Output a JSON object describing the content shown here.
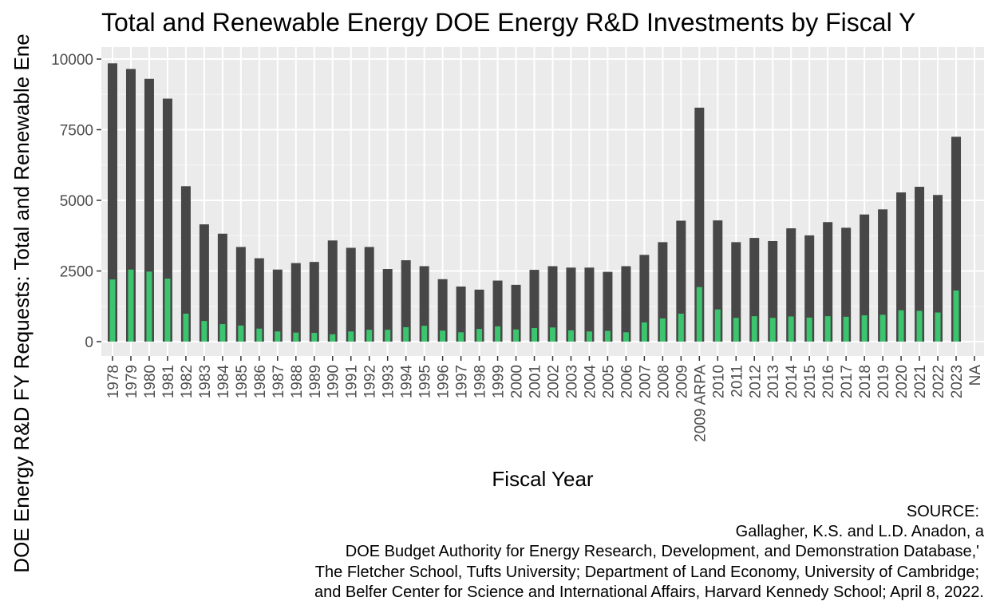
{
  "chart_data": {
    "type": "bar",
    "title": "Total and Renewable Energy DOE Energy R&D Investments by Fiscal Y",
    "xlabel": "Fiscal Year",
    "ylabel": "DOE Energy R&D FY Requests: Total and Renewable Ene",
    "ylim": [
      0,
      10000
    ],
    "yticks": [
      "0",
      "2500",
      "5000",
      "7500",
      "10000"
    ],
    "grid": true,
    "legend": "none",
    "categories": [
      "1978",
      "1979",
      "1980",
      "1981",
      "1982",
      "1983",
      "1984",
      "1985",
      "1986",
      "1987",
      "1988",
      "1989",
      "1990",
      "1991",
      "1992",
      "1993",
      "1994",
      "1995",
      "1996",
      "1997",
      "1998",
      "1999",
      "2000",
      "2001",
      "2002",
      "2003",
      "2004",
      "2005",
      "2006",
      "2007",
      "2008",
      "2009",
      "2009 ARPA",
      "2010",
      "2011",
      "2012",
      "2013",
      "2014",
      "2015",
      "2016",
      "2017",
      "2018",
      "2019",
      "2020",
      "2021",
      "2022",
      "2023",
      "NA"
    ],
    "series": [
      {
        "color": "#474747",
        "values": [
          9850,
          9650,
          9300,
          8600,
          5500,
          4150,
          3820,
          3350,
          2950,
          2550,
          2780,
          2820,
          3580,
          3320,
          3350,
          2570,
          2880,
          2670,
          2210,
          1950,
          1840,
          2160,
          2010,
          2540,
          2670,
          2620,
          2620,
          2470,
          2670,
          3070,
          3520,
          4280,
          8280,
          4290,
          3520,
          3670,
          3560,
          4010,
          3760,
          4230,
          4030,
          4500,
          4680,
          5280,
          5480,
          5190,
          7250,
          null
        ]
      },
      {
        "color": "#3cc46f",
        "values": [
          2200,
          2550,
          2480,
          2230,
          990,
          730,
          620,
          570,
          460,
          360,
          320,
          310,
          260,
          360,
          420,
          420,
          510,
          560,
          390,
          330,
          450,
          540,
          430,
          480,
          500,
          400,
          360,
          380,
          330,
          680,
          820,
          990,
          1930,
          1140,
          840,
          900,
          840,
          890,
          850,
          900,
          880,
          930,
          950,
          1110,
          1090,
          1030,
          1810,
          null
        ]
      }
    ]
  },
  "caption": {
    "line1": "SOURCE:",
    "line2": "Gallagher, K.S. and L.D. Anadon, a",
    "line3": "DOE Budget Authority for Energy Research, Development, and Demonstration Database,'",
    "line4": "The Fletcher School, Tufts University; Department of Land Economy, University of Cambridge;",
    "line5": "and Belfer Center for Science and International Affairs, Harvard Kennedy School; April 8, 2022."
  }
}
